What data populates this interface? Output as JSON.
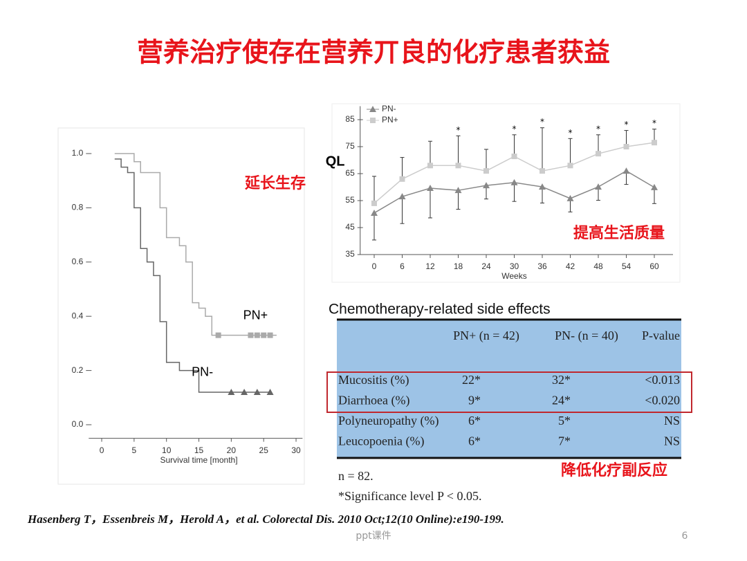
{
  "title": "营养治疗使存在营养丌良的化疗患者获益",
  "chart_data": [
    {
      "type": "step",
      "x_label": "Survival time [month]",
      "xlim": [
        -2,
        31
      ],
      "ylim": [
        -0.05,
        1.05
      ],
      "xticks": [
        0,
        5,
        10,
        15,
        20,
        25,
        30
      ],
      "yticks": [
        {
          "value": 0,
          "label": "0.0"
        },
        {
          "value": 0.2,
          "label": "0.2"
        },
        {
          "value": 0.4,
          "label": "0.4"
        },
        {
          "value": 0.6,
          "label": "0.6"
        },
        {
          "value": 0.8,
          "label": "0.8"
        },
        {
          "value": 1,
          "label": "1.0"
        }
      ],
      "series": [
        {
          "name": "PN+",
          "color": "#aaaaaa",
          "marker": "square",
          "x": [
            2,
            5,
            6,
            9,
            10,
            12,
            13,
            14,
            15,
            16,
            17,
            27
          ],
          "values": [
            1.0,
            0.97,
            0.93,
            0.8,
            0.69,
            0.66,
            0.6,
            0.45,
            0.43,
            0.4,
            0.33,
            0.33
          ],
          "censored_x": [
            18,
            23,
            24,
            25,
            26
          ]
        },
        {
          "name": "PN-",
          "color": "#666666",
          "marker": "triangle",
          "x": [
            2,
            3,
            4,
            5,
            6,
            7,
            8,
            9,
            10,
            12,
            15,
            26
          ],
          "values": [
            0.98,
            0.95,
            0.93,
            0.8,
            0.65,
            0.6,
            0.55,
            0.38,
            0.23,
            0.2,
            0.12,
            0.12
          ],
          "censored_x": [
            20,
            22,
            24,
            26
          ]
        }
      ]
    },
    {
      "type": "line",
      "x_label": "Weeks",
      "y_label": "QL",
      "xlim": [
        -3,
        64
      ],
      "ylim": [
        35,
        90
      ],
      "xticks": [
        0,
        6,
        12,
        18,
        24,
        30,
        36,
        42,
        48,
        54,
        60
      ],
      "yticks": [
        35,
        45,
        55,
        65,
        75,
        85
      ],
      "significance_marker": "*",
      "significant_x": [
        18,
        30,
        36,
        42,
        48,
        54,
        60
      ],
      "series": [
        {
          "name": "PN-",
          "color": "#888888",
          "marker": "triangle",
          "error_direction": "down",
          "x": [
            0,
            6,
            12,
            18,
            24,
            30,
            36,
            42,
            48,
            54,
            60
          ],
          "values": [
            50.4,
            56.5,
            59.6,
            58.8,
            60.6,
            61.7,
            60.1,
            55.8,
            60.1,
            66,
            59.9
          ],
          "errors": [
            10,
            10,
            11,
            7,
            5,
            7,
            6,
            5,
            5,
            5,
            6
          ]
        },
        {
          "name": "PN+",
          "color": "#cccccc",
          "marker": "square",
          "error_direction": "up",
          "x": [
            0,
            6,
            12,
            18,
            24,
            30,
            36,
            42,
            48,
            54,
            60
          ],
          "values": [
            54,
            63,
            68,
            68,
            66,
            71.4,
            66,
            68,
            72.4,
            75,
            76.5
          ],
          "errors": [
            10,
            8,
            9,
            11,
            8,
            8,
            16,
            10,
            7,
            6,
            5
          ]
        }
      ]
    }
  ],
  "annotations": {
    "survival": "延长生存",
    "quality": "提高生活质量",
    "side_effects": "降低化疗副反应"
  },
  "table": {
    "title": "Chemotherapy-related side effects",
    "header": [
      "PN+ (n = 42)",
      "PN- (n = 40)",
      "P-value"
    ],
    "rows": [
      [
        "Mucositis (%)",
        "22*",
        "32*",
        "<0.013"
      ],
      [
        "Diarrhoea (%)",
        "9*",
        "24*",
        "<0.020"
      ],
      [
        "Polyneuropathy (%)",
        "6*",
        "5*",
        "NS"
      ],
      [
        "Leucopoenia (%)",
        "6*",
        "7*",
        "NS"
      ]
    ],
    "notes": [
      "n = 82.",
      "*Significance level P < 0.05."
    ]
  },
  "citation": "Hasenberg T，Essenbreis M，Herold A，et al. Colorectal Dis. 2010 Oct;12(10 Online):e190-199.",
  "footer": {
    "label": "ppt课件",
    "page": "6"
  }
}
